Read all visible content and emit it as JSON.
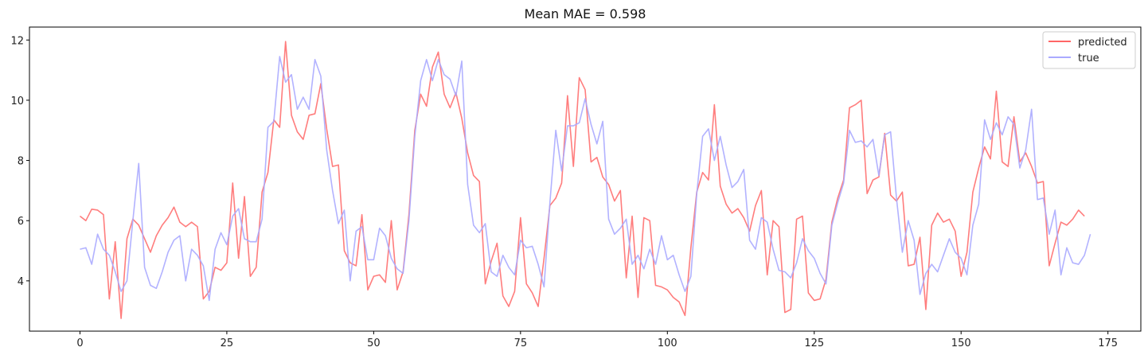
{
  "chart_data": {
    "type": "line",
    "title": "Mean MAE = 0.598",
    "xlabel": "",
    "ylabel": "",
    "xlim": [
      -8.6,
      180.6
    ],
    "ylim": [
      2.33,
      12.43
    ],
    "xticks": [
      0,
      25,
      50,
      75,
      100,
      125,
      150,
      175
    ],
    "yticks": [
      4,
      6,
      8,
      10,
      12
    ],
    "grid": false,
    "legend_position": "top-right",
    "series": [
      {
        "name": "predicted",
        "color": "#ff6666",
        "values": [
          6.15,
          6.0,
          6.38,
          6.35,
          6.2,
          3.4,
          5.3,
          2.75,
          5.4,
          6.05,
          5.85,
          5.4,
          4.95,
          5.5,
          5.85,
          6.1,
          6.45,
          5.95,
          5.8,
          5.95,
          5.8,
          3.4,
          3.65,
          4.45,
          4.35,
          4.6,
          7.25,
          4.75,
          6.8,
          4.15,
          4.45,
          6.95,
          7.6,
          9.35,
          9.1,
          11.95,
          9.5,
          8.95,
          8.7,
          9.5,
          9.55,
          10.55,
          9.05,
          7.8,
          7.85,
          5.0,
          4.6,
          4.5,
          6.2,
          3.7,
          4.15,
          4.2,
          3.95,
          6.0,
          3.7,
          4.3,
          6.2,
          9.0,
          10.2,
          9.8,
          11.1,
          11.6,
          10.2,
          9.75,
          10.25,
          9.4,
          8.25,
          7.5,
          7.3,
          3.9,
          4.65,
          5.25,
          3.5,
          3.15,
          3.65,
          6.1,
          3.9,
          3.6,
          3.15,
          4.75,
          6.5,
          6.75,
          7.25,
          10.15,
          7.8,
          10.75,
          10.35,
          7.95,
          8.1,
          7.45,
          7.2,
          6.65,
          7.0,
          4.1,
          6.15,
          3.45,
          6.1,
          6.0,
          3.85,
          3.8,
          3.7,
          3.45,
          3.3,
          2.85,
          5.1,
          6.95,
          7.6,
          7.35,
          9.85,
          7.15,
          6.55,
          6.25,
          6.4,
          6.1,
          5.65,
          6.5,
          7.0,
          4.2,
          6.0,
          5.8,
          2.95,
          3.05,
          6.05,
          6.15,
          3.6,
          3.35,
          3.4,
          4.05,
          5.95,
          6.75,
          7.35,
          9.75,
          9.85,
          10.0,
          6.9,
          7.35,
          7.45,
          8.9,
          6.85,
          6.65,
          6.95,
          4.5,
          4.55,
          5.45,
          3.05,
          5.85,
          6.25,
          5.95,
          6.05,
          5.65,
          4.15,
          4.95,
          6.95,
          7.75,
          8.45,
          8.05,
          10.3,
          7.95,
          7.8,
          9.45,
          7.95,
          8.25,
          7.8,
          7.25,
          7.3,
          4.5,
          5.25,
          5.95,
          5.85,
          6.05,
          6.35,
          6.15
        ]
      },
      {
        "name": "true",
        "color": "#aaaaff",
        "values": [
          5.05,
          5.1,
          4.55,
          5.55,
          5.05,
          4.85,
          4.3,
          3.65,
          4.0,
          6.0,
          7.9,
          4.45,
          3.85,
          3.75,
          4.3,
          4.95,
          5.35,
          5.5,
          4.0,
          5.05,
          4.85,
          4.5,
          3.35,
          5.05,
          5.6,
          5.2,
          6.15,
          6.4,
          5.4,
          5.3,
          5.3,
          6.05,
          9.1,
          9.3,
          11.45,
          10.6,
          10.85,
          9.7,
          10.1,
          9.7,
          11.35,
          10.8,
          8.35,
          7.0,
          5.9,
          6.35,
          4.0,
          5.65,
          5.8,
          4.7,
          4.7,
          5.75,
          5.5,
          4.75,
          4.4,
          4.25,
          6.0,
          8.8,
          10.65,
          11.35,
          10.65,
          11.35,
          10.85,
          10.7,
          10.15,
          11.3,
          7.2,
          5.85,
          5.6,
          5.9,
          4.3,
          4.15,
          4.85,
          4.45,
          4.2,
          5.35,
          5.1,
          5.15,
          4.55,
          3.8,
          6.6,
          9.0,
          7.65,
          9.15,
          9.15,
          9.25,
          10.05,
          9.2,
          8.55,
          9.3,
          6.05,
          5.55,
          5.75,
          6.05,
          4.55,
          4.85,
          4.4,
          5.05,
          4.55,
          5.5,
          4.7,
          4.85,
          4.2,
          3.65,
          4.15,
          6.9,
          8.8,
          9.05,
          8.0,
          8.8,
          7.85,
          7.1,
          7.3,
          7.7,
          5.35,
          5.05,
          6.1,
          5.95,
          5.05,
          4.35,
          4.3,
          4.1,
          4.6,
          5.4,
          5.0,
          4.75,
          4.25,
          3.9,
          5.85,
          6.6,
          7.25,
          9.0,
          8.6,
          8.65,
          8.45,
          8.7,
          7.5,
          8.85,
          8.95,
          6.75,
          4.95,
          6.0,
          5.35,
          3.55,
          4.25,
          4.55,
          4.3,
          4.85,
          5.4,
          4.95,
          4.75,
          4.2,
          5.85,
          6.55,
          9.35,
          8.7,
          9.25,
          8.85,
          9.45,
          9.2,
          7.75,
          8.35,
          9.7,
          6.7,
          6.75,
          5.55,
          6.35,
          4.2,
          5.1,
          4.6,
          4.55,
          4.85,
          5.55
        ]
      }
    ]
  }
}
